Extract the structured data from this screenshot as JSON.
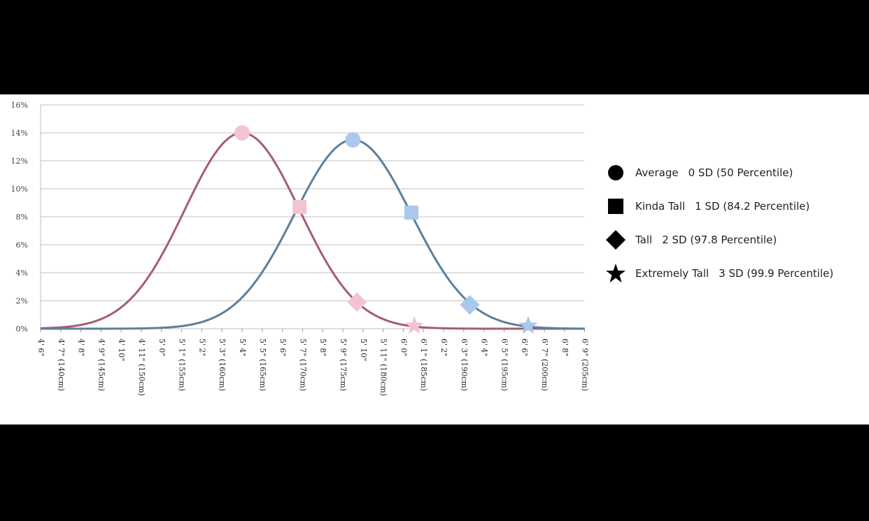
{
  "chart_data": {
    "type": "line",
    "y_ticks": [
      "0%",
      "2%",
      "4%",
      "6%",
      "8%",
      "10%",
      "12%",
      "14%",
      "16%"
    ],
    "ylim": [
      0,
      16
    ],
    "x_categories": [
      "4' 6\"",
      "4' 7\" (140cm)",
      "4' 8\"",
      "4' 9\" (145cm)",
      "4' 10\"",
      "4' 11\" (150cm)",
      "5' 0\"",
      "5' 1\" (155cm)",
      "5' 2\"",
      "5' 3\" (160cm)",
      "5' 4\"",
      "5' 5\" (165cm)",
      "5' 6\"",
      "5' 7\" (170cm)",
      "5' 8\"",
      "5' 9\" (175cm)",
      "5' 10\"",
      "5' 11\" (180cm)",
      "6' 0\"",
      "6' 1\" (185cm)",
      "6' 2\"",
      "6' 3\" (190cm)",
      "6' 4\"",
      "6' 5\" (195cm)",
      "6' 6\"",
      "6' 7\" (200cm)",
      "6' 8\"",
      "6' 9\" (205cm)"
    ],
    "grid": true,
    "legend_position": "right",
    "series": [
      {
        "color": "#a45e6b",
        "marker_color": "#f2c4d2",
        "mean_index": 10.0,
        "sd_index": 2.85,
        "peak": 14.0,
        "markers": [
          {
            "x_index": 10.0,
            "y": 14.0,
            "shape": "circle"
          },
          {
            "x_index": 12.85,
            "y": 8.7,
            "shape": "square"
          },
          {
            "x_index": 15.7,
            "y": 1.9,
            "shape": "diamond"
          },
          {
            "x_index": 18.55,
            "y": 0.2,
            "shape": "star"
          }
        ]
      },
      {
        "color": "#5b7f9c",
        "marker_color": "#a9c8eb",
        "mean_index": 15.5,
        "sd_index": 2.9,
        "peak": 13.5,
        "markers": [
          {
            "x_index": 15.5,
            "y": 13.5,
            "shape": "circle"
          },
          {
            "x_index": 18.4,
            "y": 8.3,
            "shape": "square"
          },
          {
            "x_index": 21.3,
            "y": 1.7,
            "shape": "diamond"
          },
          {
            "x_index": 24.2,
            "y": 0.2,
            "shape": "star"
          }
        ]
      }
    ]
  },
  "legend": {
    "items": [
      {
        "shape": "circle",
        "label": "Average",
        "sd": "0 SD (50 Percentile)"
      },
      {
        "shape": "square",
        "label": "Kinda Tall",
        "sd": "1 SD (84.2 Percentile)"
      },
      {
        "shape": "diamond",
        "label": "Tall",
        "sd": "2 SD (97.8 Percentile)"
      },
      {
        "shape": "star",
        "label": "Extremely Tall",
        "sd": "3 SD (99.9 Percentile)"
      }
    ]
  },
  "colors": {
    "background": "#000000",
    "panel": "#ffffff",
    "grid": "#bfbfbf",
    "marker_black": "#000000"
  }
}
